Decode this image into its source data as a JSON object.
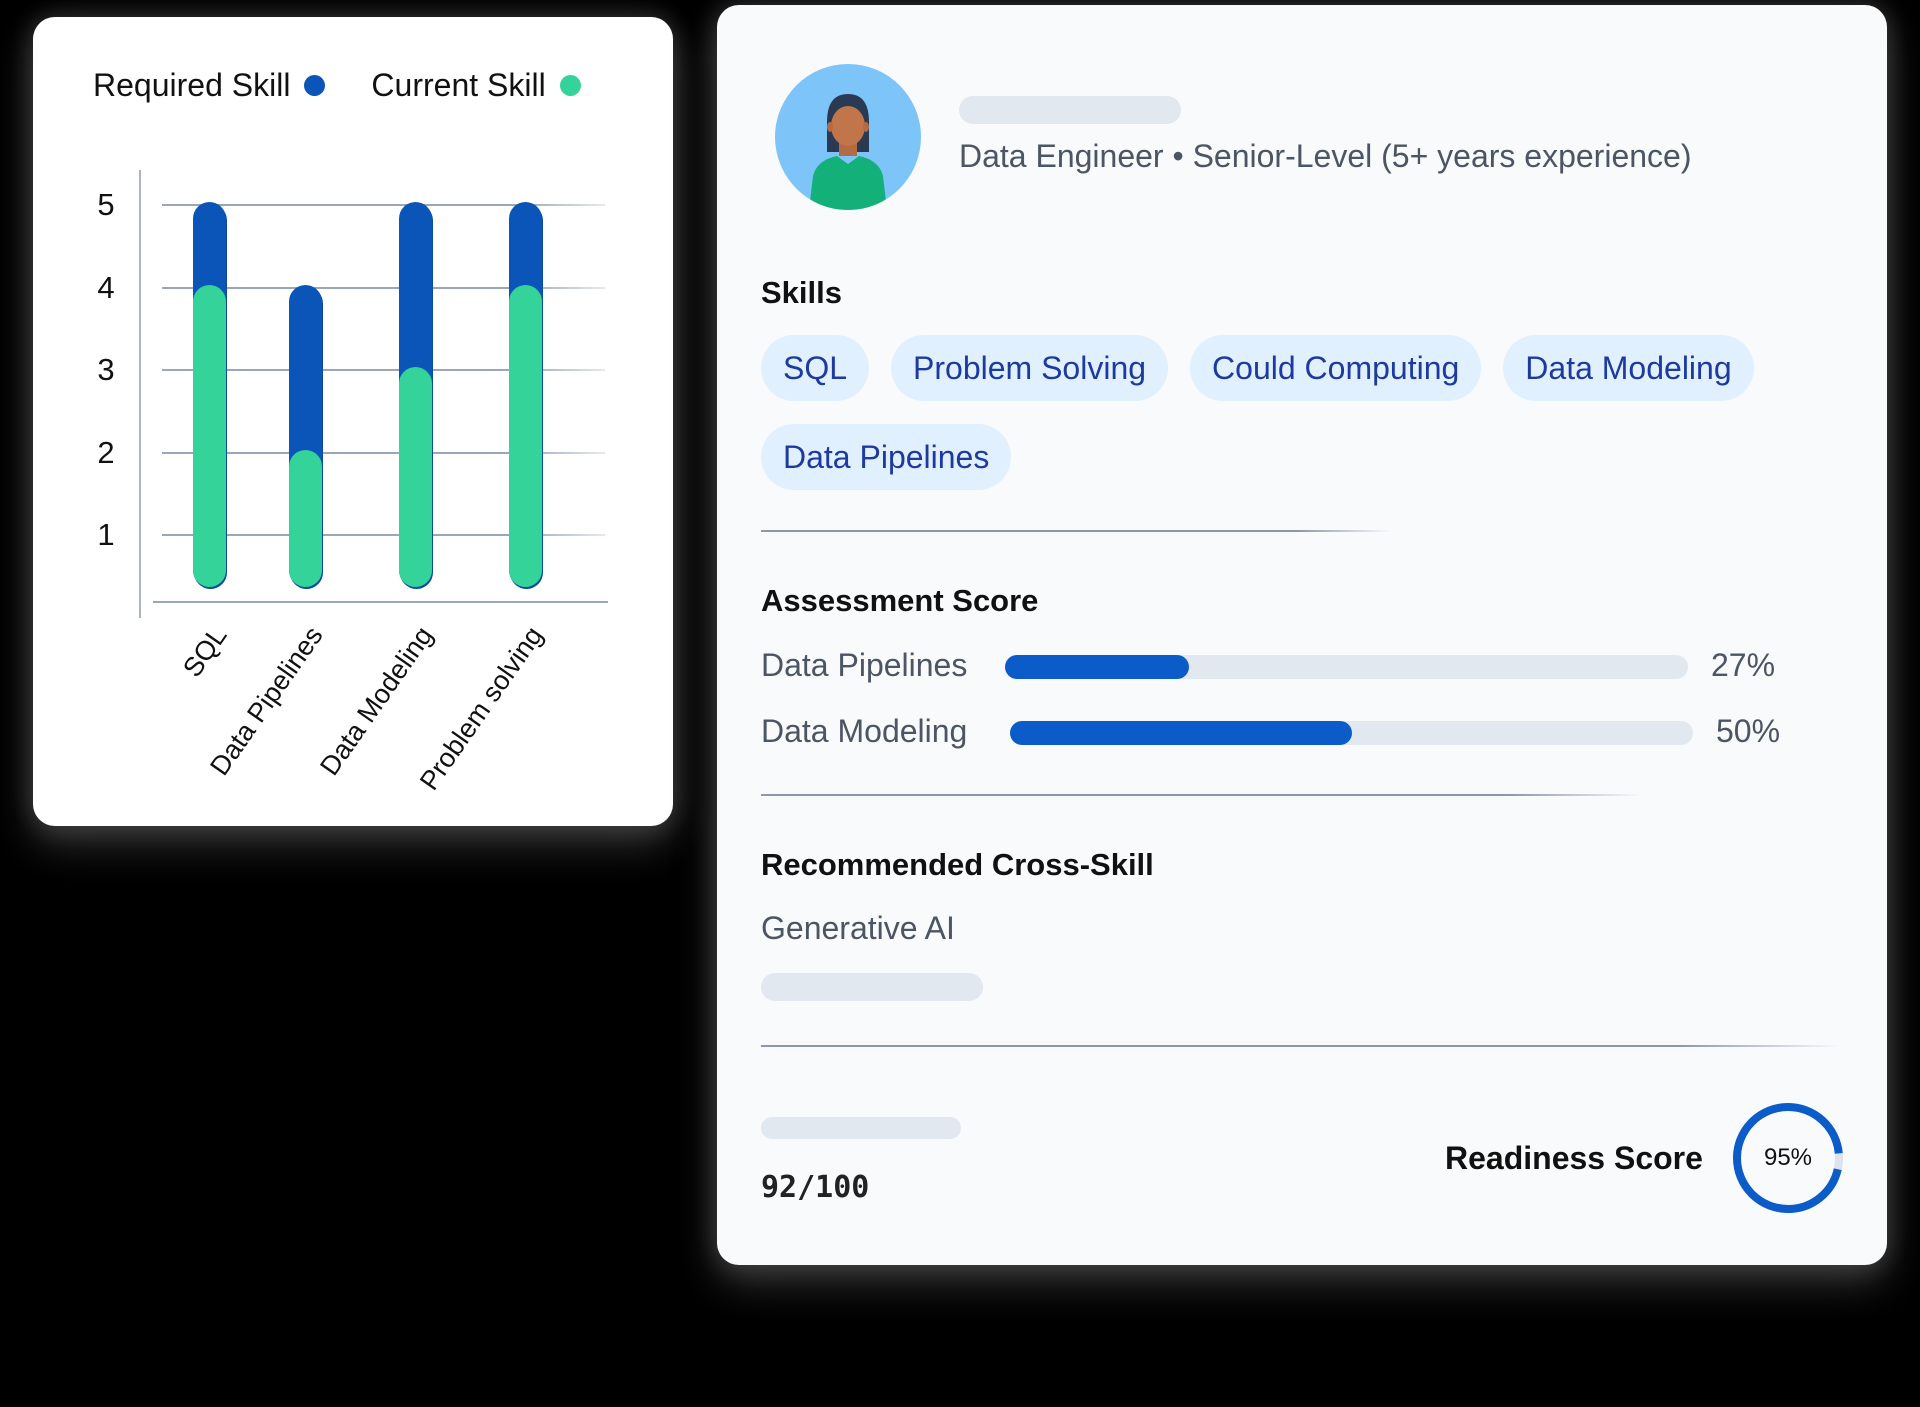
{
  "chart_card": {
    "legend": [
      {
        "label": "Required Skill",
        "color": "#0b54b8"
      },
      {
        "label": "Current Skill",
        "color": "#34d399"
      }
    ],
    "y_ticks": [
      "5",
      "4",
      "3",
      "2",
      "1"
    ],
    "x_labels": [
      "SQL",
      "Data Pipelines",
      "Data Modeling",
      "Problem solving"
    ]
  },
  "chart_data": {
    "type": "bar",
    "title": "",
    "categories": [
      "SQL",
      "Data Pipelines",
      "Data Modeling",
      "Problem solving"
    ],
    "series": [
      {
        "name": "Required Skill",
        "color": "#0b54b8",
        "values": [
          5,
          4,
          5,
          5
        ]
      },
      {
        "name": "Current Skill",
        "color": "#34d399",
        "values": [
          4,
          2,
          3,
          4
        ]
      }
    ],
    "xlabel": "",
    "ylabel": "",
    "ylim": [
      0,
      5
    ],
    "yticks": [
      1,
      2,
      3,
      4,
      5
    ],
    "grid": true,
    "legend_position": "top",
    "overlapping_bars": true
  },
  "profile": {
    "subtitle": "Data Engineer • Senior-Level (5+ years experience)",
    "skills_title": "Skills",
    "skills": [
      "SQL",
      "Problem Solving",
      "Could Computing",
      "Data Modeling",
      "Data Pipelines"
    ],
    "assessment_title": "Assessment Score",
    "assessments": [
      {
        "label": "Data Pipelines",
        "value": 27,
        "display": "27%"
      },
      {
        "label": "Data Modeling",
        "value": 50,
        "display": "50%"
      }
    ],
    "cross_skill_title": "Recommended Cross-Skill",
    "cross_skill": "Generative AI",
    "total_score": "92/100",
    "readiness_label": "Readiness Score",
    "readiness_value": 95,
    "readiness_display": "95%",
    "accent_color": "#0b5cc8"
  }
}
